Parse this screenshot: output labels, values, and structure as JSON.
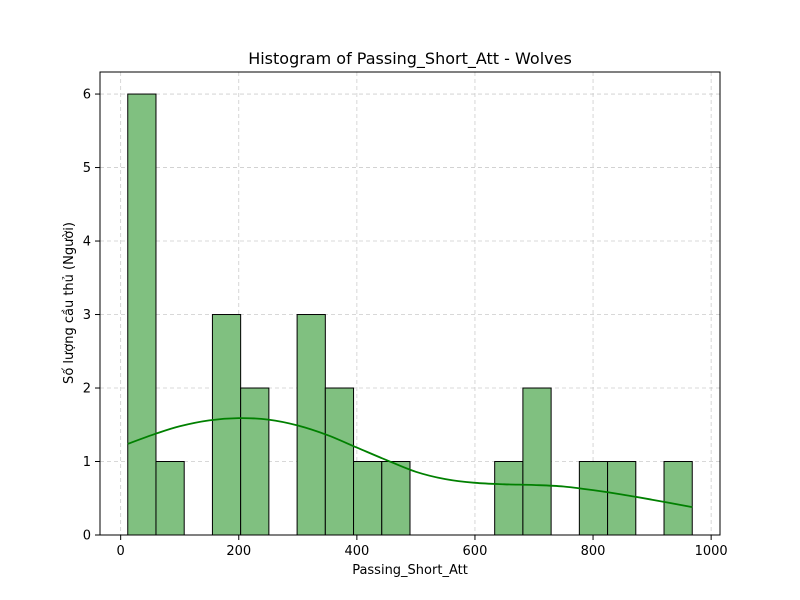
{
  "chart_data": {
    "type": "bar",
    "title": "Histogram of Passing_Short_Att - Wolves",
    "xlabel": "Passing_Short_Att",
    "ylabel": "Số lượng cầu thủ (Người)",
    "xlim": [
      -35,
      1015
    ],
    "ylim": [
      0,
      6.3
    ],
    "xticks": [
      0,
      200,
      400,
      600,
      800,
      1000
    ],
    "yticks": [
      0,
      1,
      2,
      3,
      4,
      5,
      6
    ],
    "grid": true,
    "bin_width": 47.8,
    "bins": [
      {
        "start": 12,
        "count": 6
      },
      {
        "start": 59.8,
        "count": 1
      },
      {
        "start": 107.6,
        "count": 0
      },
      {
        "start": 155.4,
        "count": 3
      },
      {
        "start": 203.2,
        "count": 2
      },
      {
        "start": 251,
        "count": 0
      },
      {
        "start": 298.8,
        "count": 3
      },
      {
        "start": 346.6,
        "count": 2
      },
      {
        "start": 394.4,
        "count": 1
      },
      {
        "start": 442.2,
        "count": 1
      },
      {
        "start": 490,
        "count": 0
      },
      {
        "start": 537.8,
        "count": 0
      },
      {
        "start": 585.6,
        "count": 0
      },
      {
        "start": 633.4,
        "count": 1
      },
      {
        "start": 681.2,
        "count": 2
      },
      {
        "start": 729,
        "count": 0
      },
      {
        "start": 776.8,
        "count": 1
      },
      {
        "start": 824.6,
        "count": 1
      },
      {
        "start": 872.4,
        "count": 0
      },
      {
        "start": 920.2,
        "count": 1
      }
    ],
    "kde": {
      "x": [
        12,
        60,
        100,
        150,
        200,
        250,
        300,
        350,
        400,
        450,
        500,
        550,
        600,
        650,
        700,
        750,
        800,
        850,
        900,
        968
      ],
      "y": [
        1.24,
        1.38,
        1.48,
        1.56,
        1.59,
        1.57,
        1.49,
        1.36,
        1.19,
        1.02,
        0.86,
        0.76,
        0.71,
        0.69,
        0.68,
        0.66,
        0.61,
        0.55,
        0.48,
        0.38
      ]
    },
    "colors": {
      "bar_fill": "#80c080",
      "bar_edge": "#000000",
      "kde_line": "#008000",
      "grid": "#cccccc"
    }
  }
}
